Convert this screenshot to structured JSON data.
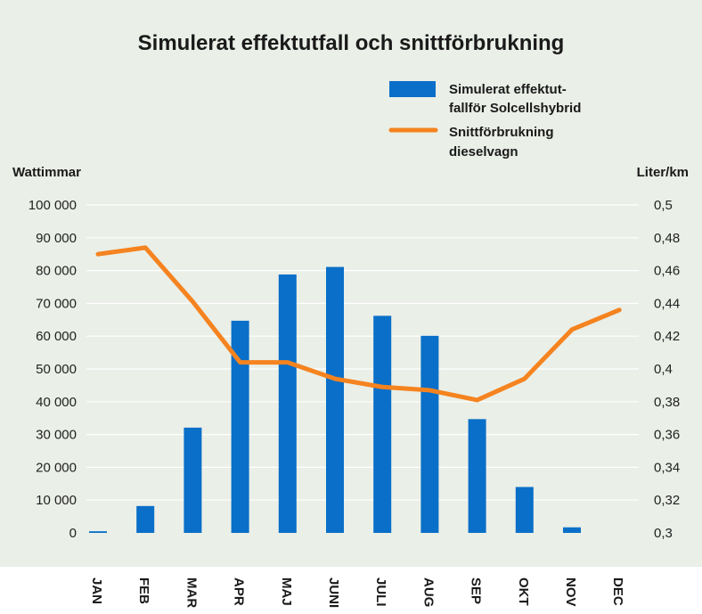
{
  "colors": {
    "background": "#eaefe7",
    "bar": "#0a6fc8",
    "line": "#f5831f",
    "grid": "#ffffff"
  },
  "chart_data": {
    "type": "bar",
    "title": "Simulerat effektutfall och snittförbrukning",
    "categories": [
      "JAN",
      "FEB",
      "MAR",
      "APR",
      "MAJ",
      "JUNI",
      "JULI",
      "AUG",
      "SEP",
      "OKT",
      "NOV",
      "DEC"
    ],
    "ylabel_left": "Wattimmar",
    "ylabel_right": "Liter/km",
    "ylim_left": [
      0,
      100000
    ],
    "ylim_right": [
      0.3,
      0.5
    ],
    "yticks_left": [
      "0",
      "10 000",
      "20 000",
      "30 000",
      "40 000",
      "50 000",
      "60 000",
      "70 000",
      "80 000",
      "90 000",
      "100 000"
    ],
    "yticks_right": [
      "0,3",
      "0,32",
      "0,34",
      "0,36",
      "0,38",
      "0,4",
      "0,42",
      "0,44",
      "0,46",
      "0,48",
      "0,5"
    ],
    "grid": true,
    "legend_position": "top-right",
    "series": [
      {
        "name_lines": [
          "Simulerat effektut-",
          "fallför Solcellshybrid"
        ],
        "type": "bar",
        "axis": "left",
        "values": [
          500,
          8200,
          32100,
          64700,
          78800,
          81100,
          66200,
          60100,
          34700,
          14000,
          1700,
          0
        ]
      },
      {
        "name_lines": [
          "Snittförbrukning",
          "dieselvagn"
        ],
        "type": "line",
        "axis": "right",
        "values": [
          0.47,
          0.474,
          0.441,
          0.404,
          0.404,
          0.394,
          0.389,
          0.387,
          0.381,
          0.394,
          0.424,
          0.436
        ]
      }
    ]
  }
}
